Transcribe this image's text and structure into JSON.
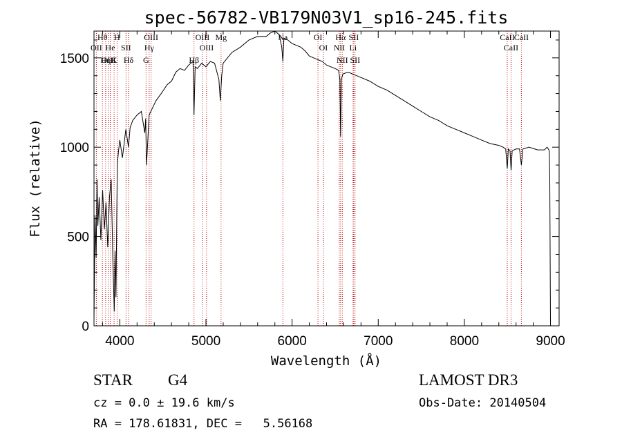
{
  "chart_data": {
    "type": "line",
    "title": "spec-56782-VB179N03V1_sp16-245.fits",
    "xlabel": "Wavelength (Å)",
    "ylabel": "Flux (relative)",
    "xlim": [
      3700,
      9100
    ],
    "ylim": [
      0,
      1650
    ],
    "xticks": [
      4000,
      5000,
      6000,
      7000,
      8000,
      9000
    ],
    "xtick_labels": [
      "4000",
      "5000",
      "6000",
      "7000",
      "8000",
      "9000"
    ],
    "yticks": [
      0,
      500,
      1000,
      1500
    ],
    "ytick_labels": [
      "0",
      "500",
      "1000",
      "1500"
    ],
    "grid": false,
    "series": [
      {
        "name": "flux",
        "x": [
          3700,
          3712,
          3725,
          3735,
          3745,
          3760,
          3780,
          3800,
          3820,
          3840,
          3860,
          3880,
          3900,
          3920,
          3935,
          3945,
          3955,
          3970,
          3985,
          4000,
          4030,
          4070,
          4100,
          4120,
          4150,
          4200,
          4250,
          4290,
          4300,
          4310,
          4340,
          4380,
          4420,
          4480,
          4550,
          4600,
          4650,
          4700,
          4750,
          4800,
          4850,
          4861,
          4875,
          4900,
          4950,
          5000,
          5050,
          5100,
          5150,
          5167,
          5183,
          5200,
          5300,
          5400,
          5500,
          5600,
          5700,
          5750,
          5800,
          5850,
          5880,
          5893,
          5905,
          5950,
          6000,
          6050,
          6100,
          6150,
          6200,
          6250,
          6300,
          6350,
          6400,
          6450,
          6500,
          6540,
          6555,
          6563,
          6572,
          6590,
          6650,
          6700,
          6800,
          6900,
          7000,
          7100,
          7200,
          7300,
          7400,
          7500,
          7600,
          7700,
          7800,
          7900,
          8000,
          8100,
          8200,
          8300,
          8400,
          8450,
          8480,
          8498,
          8510,
          8530,
          8542,
          8555,
          8600,
          8640,
          8662,
          8680,
          8750,
          8850,
          8930,
          8960,
          8975,
          8985,
          8992,
          9000
        ],
        "y": [
          30,
          620,
          380,
          820,
          560,
          720,
          480,
          760,
          540,
          690,
          440,
          720,
          820,
          350,
          80,
          420,
          160,
          900,
          980,
          1040,
          940,
          1100,
          1000,
          1110,
          1150,
          1180,
          1200,
          1080,
          1160,
          900,
          1180,
          1220,
          1260,
          1300,
          1350,
          1370,
          1420,
          1440,
          1430,
          1460,
          1480,
          1180,
          1450,
          1440,
          1470,
          1450,
          1480,
          1470,
          1380,
          1260,
          1400,
          1470,
          1530,
          1560,
          1600,
          1620,
          1620,
          1640,
          1650,
          1630,
          1560,
          1480,
          1610,
          1600,
          1580,
          1570,
          1560,
          1540,
          1510,
          1500,
          1490,
          1480,
          1460,
          1450,
          1440,
          1430,
          1380,
          1060,
          1380,
          1410,
          1420,
          1410,
          1390,
          1370,
          1340,
          1320,
          1290,
          1260,
          1230,
          1200,
          1170,
          1150,
          1120,
          1100,
          1080,
          1060,
          1040,
          1020,
          1010,
          1000,
          990,
          880,
          990,
          980,
          870,
          980,
          990,
          990,
          900,
          990,
          1000,
          985,
          985,
          1000,
          990,
          980,
          820,
          20
        ]
      }
    ],
    "lines": [
      {
        "label": "Hθ",
        "wl": 3797.9
      },
      {
        "label": "OII",
        "wl": 3727.1
      },
      {
        "label": "OIII",
        "wl": 3869
      },
      {
        "label": "He",
        "wl": 3889
      },
      {
        "label": "Hη",
        "wl": 3835.4
      },
      {
        "label": "K",
        "wl": 3933.7
      },
      {
        "label": "H",
        "wl": 3968.5
      },
      {
        "label": "SII",
        "wl": 4072
      },
      {
        "label": "Hδ",
        "wl": 4101.7
      },
      {
        "label": "OIII",
        "wl": 4363
      },
      {
        "label": "Hγ",
        "wl": 4340.5
      },
      {
        "label": "G",
        "wl": 4304.4
      },
      {
        "label": "OIII",
        "wl": 4959
      },
      {
        "label": "OIII",
        "wl": 5007
      },
      {
        "label": "Hβ",
        "wl": 4861.3
      },
      {
        "label": "Mg",
        "wl": 5175
      },
      {
        "label": "Na",
        "wl": 5893
      },
      {
        "label": "OI",
        "wl": 6300.3
      },
      {
        "label": "OI",
        "wl": 6363.8
      },
      {
        "label": "Hα",
        "wl": 6562.8
      },
      {
        "label": "NII",
        "wl": 6548
      },
      {
        "label": "NII",
        "wl": 6583
      },
      {
        "label": "SII",
        "wl": 6716
      },
      {
        "label": "Li",
        "wl": 6707.8
      },
      {
        "label": "SII",
        "wl": 6731
      },
      {
        "label": "CaII",
        "wl": 8498
      },
      {
        "label": "CaII",
        "wl": 8542
      },
      {
        "label": "CaII",
        "wl": 8662
      }
    ]
  },
  "info": {
    "class_label": "STAR",
    "subclass": "G4",
    "survey": "LAMOST DR3",
    "cz_label": "cz = 0.0 ± 19.6 km/s",
    "obs_date": "Obs-Date: 20140504",
    "coords": "RA = 178.61831, DEC =   5.56168"
  },
  "colors": {
    "line_marker": "#c00000",
    "spectrum": "#000000"
  }
}
